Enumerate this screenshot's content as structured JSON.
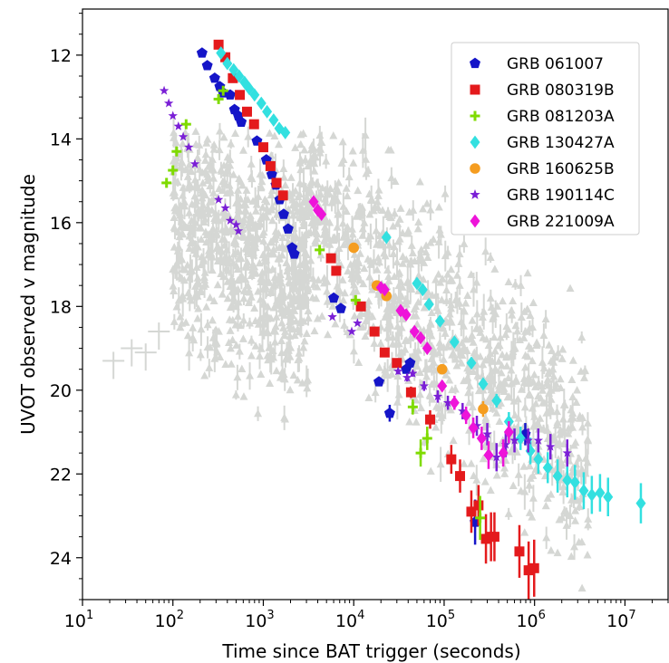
{
  "chart_data": {
    "type": "scatter",
    "xlabel": "Time since BAT trigger (seconds)",
    "ylabel": "UVOT observed v magnitude",
    "x_scale": "log",
    "x_range": [
      10,
      30000000
    ],
    "y_range": [
      25,
      10.9
    ],
    "y_inverted": true,
    "x_ticks": [
      {
        "value": 10,
        "base": "10",
        "exp": "1"
      },
      {
        "value": 100,
        "base": "10",
        "exp": "2"
      },
      {
        "value": 1000,
        "base": "10",
        "exp": "3"
      },
      {
        "value": 10000,
        "base": "10",
        "exp": "4"
      },
      {
        "value": 100000,
        "base": "10",
        "exp": "5"
      },
      {
        "value": 1000000,
        "base": "10",
        "exp": "6"
      },
      {
        "value": 10000000,
        "base": "10",
        "exp": "7"
      }
    ],
    "y_ticks": [
      "12",
      "14",
      "16",
      "18",
      "20",
      "22",
      "24"
    ],
    "legend_position": "upper right",
    "background_color": "#d5d7d4",
    "series": [
      {
        "name": "GRB 061007",
        "marker": "pentagon",
        "color": "#1515c8",
        "points": [
          [
            210,
            11.95
          ],
          [
            240,
            12.25
          ],
          [
            290,
            12.55
          ],
          [
            330,
            12.75
          ],
          [
            360,
            12.9
          ],
          [
            430,
            12.95
          ],
          [
            480,
            13.3
          ],
          [
            530,
            13.45
          ],
          [
            570,
            13.6
          ],
          [
            850,
            14.05
          ],
          [
            1080,
            14.5
          ],
          [
            1240,
            14.85
          ],
          [
            1380,
            15.1
          ],
          [
            1520,
            15.45
          ],
          [
            1680,
            15.8
          ],
          [
            1880,
            16.15
          ],
          [
            2080,
            16.6
          ],
          [
            2200,
            16.75
          ],
          [
            6000,
            17.8
          ],
          [
            7200,
            18.05
          ],
          [
            19000,
            19.8
          ],
          [
            25000,
            20.55
          ],
          [
            38000,
            19.5
          ],
          [
            42000,
            19.35
          ],
          [
            220000,
            23.15
          ],
          [
            790000,
            21.05
          ]
        ]
      },
      {
        "name": "GRB 080319B",
        "marker": "square",
        "color": "#e41a1c",
        "points": [
          [
            320,
            11.75
          ],
          [
            380,
            12.05
          ],
          [
            460,
            12.55
          ],
          [
            550,
            12.95
          ],
          [
            660,
            13.35
          ],
          [
            790,
            13.65
          ],
          [
            1000,
            14.2
          ],
          [
            1200,
            14.65
          ],
          [
            1400,
            15.05
          ],
          [
            1650,
            15.35
          ],
          [
            5600,
            16.85
          ],
          [
            6400,
            17.15
          ],
          [
            12000,
            18.0
          ],
          [
            17000,
            18.6
          ],
          [
            22000,
            19.1
          ],
          [
            30000,
            19.35
          ],
          [
            43000,
            20.05
          ],
          [
            70000,
            20.7
          ],
          [
            120000,
            21.65
          ],
          [
            150000,
            22.05
          ],
          [
            200000,
            22.9
          ],
          [
            240000,
            22.75
          ],
          [
            290000,
            23.55
          ],
          [
            330000,
            23.5
          ],
          [
            360000,
            23.5
          ],
          [
            680000,
            23.85
          ],
          [
            860000,
            24.3
          ],
          [
            990000,
            24.25
          ]
        ]
      },
      {
        "name": "GRB 081203A",
        "marker": "plus",
        "color": "#7fdb00",
        "points": [
          [
            85,
            15.05
          ],
          [
            100,
            14.75
          ],
          [
            110,
            14.3
          ],
          [
            140,
            13.65
          ],
          [
            320,
            13.05
          ],
          [
            360,
            12.85
          ],
          [
            4200,
            16.65
          ],
          [
            10500,
            17.85
          ],
          [
            45000,
            20.4
          ],
          [
            55000,
            21.5
          ],
          [
            65000,
            21.15
          ],
          [
            250000,
            23.05
          ]
        ]
      },
      {
        "name": "GRB 130427A",
        "marker": "diamond",
        "color": "#33e0e0",
        "points": [
          [
            340,
            11.95
          ],
          [
            400,
            12.2
          ],
          [
            470,
            12.35
          ],
          [
            540,
            12.5
          ],
          [
            620,
            12.65
          ],
          [
            700,
            12.8
          ],
          [
            800,
            12.95
          ],
          [
            950,
            13.15
          ],
          [
            1100,
            13.35
          ],
          [
            1300,
            13.55
          ],
          [
            1500,
            13.75
          ],
          [
            1750,
            13.85
          ],
          [
            23000,
            16.35
          ],
          [
            50000,
            17.45
          ],
          [
            58000,
            17.6
          ],
          [
            68000,
            17.95
          ],
          [
            90000,
            18.35
          ],
          [
            130000,
            18.85
          ],
          [
            200000,
            19.35
          ],
          [
            270000,
            19.85
          ],
          [
            380000,
            20.25
          ],
          [
            520000,
            20.75
          ],
          [
            700000,
            21.15
          ],
          [
            900000,
            21.45
          ],
          [
            1100000,
            21.65
          ],
          [
            1400000,
            21.85
          ],
          [
            1800000,
            22.05
          ],
          [
            2300000,
            22.15
          ],
          [
            2800000,
            22.2
          ],
          [
            3500000,
            22.4
          ],
          [
            4300000,
            22.5
          ],
          [
            5300000,
            22.45
          ],
          [
            6500000,
            22.55
          ],
          [
            15000000,
            22.7
          ]
        ]
      },
      {
        "name": "GRB 160625B",
        "marker": "circle",
        "color": "#f59d20",
        "points": [
          [
            10000,
            16.6
          ],
          [
            18000,
            17.5
          ],
          [
            23000,
            17.75
          ],
          [
            95000,
            19.5
          ],
          [
            270000,
            20.45
          ]
        ]
      },
      {
        "name": "GRB 190114C",
        "marker": "star",
        "color": "#7a1fd6",
        "points": [
          [
            80,
            12.85
          ],
          [
            90,
            13.15
          ],
          [
            100,
            13.45
          ],
          [
            115,
            13.7
          ],
          [
            130,
            13.95
          ],
          [
            150,
            14.2
          ],
          [
            175,
            14.6
          ],
          [
            320,
            15.45
          ],
          [
            380,
            15.65
          ],
          [
            430,
            15.95
          ],
          [
            500,
            16.05
          ],
          [
            530,
            16.2
          ],
          [
            5800,
            18.25
          ],
          [
            9500,
            18.6
          ],
          [
            11000,
            18.4
          ],
          [
            31000,
            19.55
          ],
          [
            39000,
            19.7
          ],
          [
            45000,
            19.6
          ],
          [
            60000,
            19.9
          ],
          [
            85000,
            20.15
          ],
          [
            110000,
            20.3
          ],
          [
            160000,
            20.5
          ],
          [
            230000,
            20.85
          ],
          [
            300000,
            21.05
          ],
          [
            380000,
            21.6
          ],
          [
            480000,
            21.3
          ],
          [
            600000,
            21.2
          ],
          [
            850000,
            21.2
          ],
          [
            1100000,
            21.2
          ],
          [
            1500000,
            21.35
          ],
          [
            2300000,
            21.5
          ]
        ]
      },
      {
        "name": "GRB 221009A",
        "marker": "diamond",
        "color": "#ee14d9",
        "points": [
          [
            3600,
            15.5
          ],
          [
            4000,
            15.7
          ],
          [
            4400,
            15.8
          ],
          [
            20000,
            17.55
          ],
          [
            22000,
            17.6
          ],
          [
            33000,
            18.1
          ],
          [
            38000,
            18.2
          ],
          [
            47000,
            18.6
          ],
          [
            55000,
            18.75
          ],
          [
            65000,
            19.0
          ],
          [
            95000,
            19.9
          ],
          [
            130000,
            20.3
          ],
          [
            175000,
            20.6
          ],
          [
            210000,
            20.9
          ],
          [
            260000,
            21.15
          ],
          [
            310000,
            21.55
          ],
          [
            450000,
            21.5
          ],
          [
            520000,
            21.0
          ]
        ]
      }
    ]
  }
}
